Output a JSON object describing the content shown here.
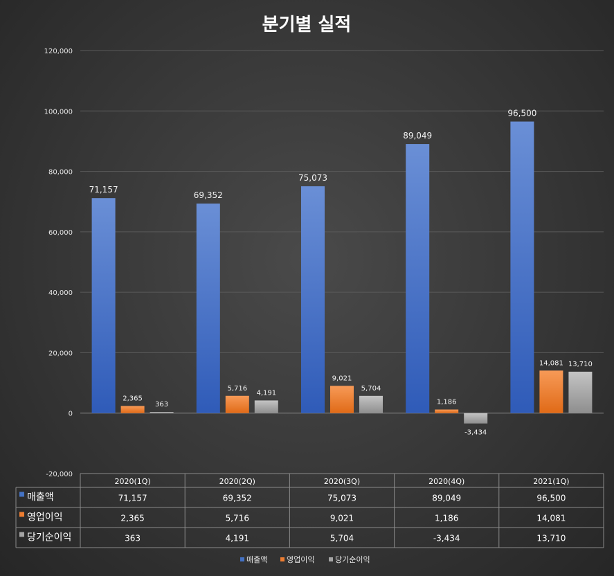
{
  "chart_data": {
    "type": "bar",
    "title": "분기별 실적",
    "categories": [
      "2020(1Q)",
      "2020(2Q)",
      "2020(3Q)",
      "2020(4Q)",
      "2021(1Q)"
    ],
    "series": [
      {
        "name": "매출액",
        "color": "#4472c4",
        "values": [
          71157,
          69352,
          75073,
          89049,
          96500
        ],
        "labels": [
          "71,157",
          "69,352",
          "75,073",
          "89,049",
          "96,500"
        ]
      },
      {
        "name": "영업이익",
        "color": "#ed7d31",
        "values": [
          2365,
          5716,
          9021,
          1186,
          14081
        ],
        "labels": [
          "2,365",
          "5,716",
          "9,021",
          "1,186",
          "14,081"
        ]
      },
      {
        "name": "당기순이익",
        "color": "#a5a5a5",
        "values": [
          363,
          4191,
          5704,
          -3434,
          13710
        ],
        "labels": [
          "363",
          "4,191",
          "5,704",
          "-3,434",
          "13,710"
        ]
      }
    ],
    "ylim": [
      -20000,
      120000
    ],
    "yticks": [
      120000,
      100000,
      80000,
      60000,
      40000,
      20000,
      0,
      -20000
    ],
    "ytick_labels": [
      "120,000",
      "100,000",
      "80,000",
      "60,000",
      "40,000",
      "20,000",
      "0",
      "-20,000"
    ],
    "grid": true,
    "data_table": true,
    "legend": "bottom"
  }
}
